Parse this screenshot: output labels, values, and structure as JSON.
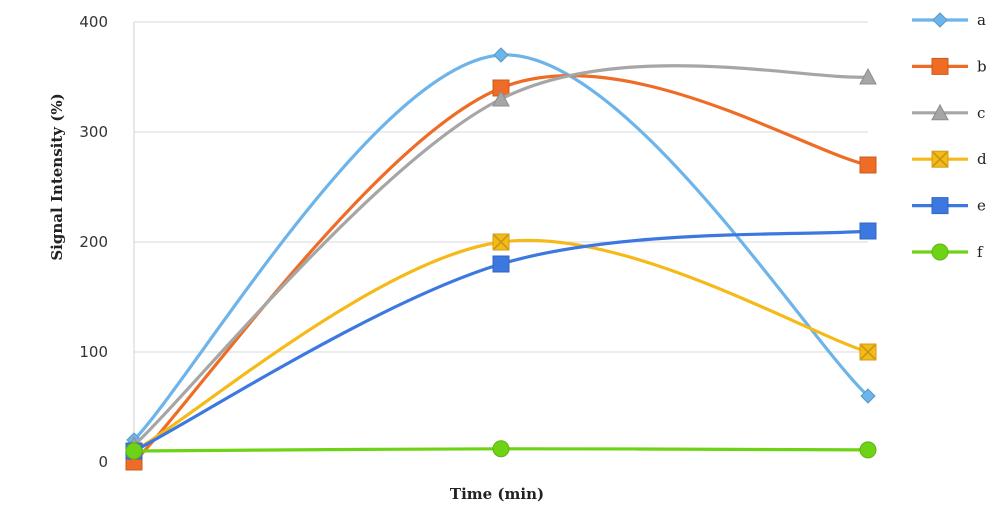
{
  "chart_data": {
    "type": "line",
    "title": "",
    "xlabel": "Time (min)",
    "ylabel": "Signal Intensity (%)",
    "ylim": [
      0,
      400
    ],
    "yticks": [
      "0",
      "100",
      "200",
      "300",
      "400"
    ],
    "categories": [
      "",
      "",
      ""
    ],
    "grid": true,
    "legend_position": "right",
    "series": [
      {
        "name": "a",
        "values": [
          20,
          370,
          60
        ],
        "color": "#6CB4EA",
        "marker": "diamond"
      },
      {
        "name": "b",
        "values": [
          0,
          340,
          270
        ],
        "color": "#EE6C25",
        "marker": "square"
      },
      {
        "name": "c",
        "values": [
          15,
          330,
          350
        ],
        "color": "#A6A6A6",
        "marker": "triangle"
      },
      {
        "name": "d",
        "values": [
          10,
          200,
          100
        ],
        "color": "#F5BA18",
        "marker": "x-square"
      },
      {
        "name": "e",
        "values": [
          10,
          180,
          210
        ],
        "color": "#3D78E0",
        "marker": "square"
      },
      {
        "name": "f",
        "values": [
          10,
          12,
          11
        ],
        "color": "#6ED315",
        "marker": "circle"
      }
    ]
  }
}
